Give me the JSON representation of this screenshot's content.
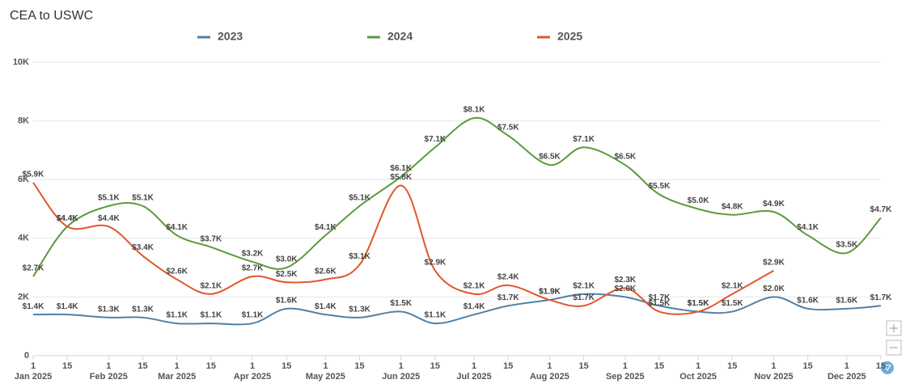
{
  "chart_data": {
    "type": "line",
    "title": "CEA to USWC",
    "x": [
      "2025-01-01",
      "2025-01-15",
      "2025-02-01",
      "2025-02-15",
      "2025-03-01",
      "2025-03-15",
      "2025-04-01",
      "2025-04-15",
      "2025-05-01",
      "2025-05-15",
      "2025-06-01",
      "2025-06-15",
      "2025-07-01",
      "2025-07-15",
      "2025-08-01",
      "2025-08-15",
      "2025-09-01",
      "2025-09-15",
      "2025-10-01",
      "2025-10-15",
      "2025-11-01",
      "2025-11-15",
      "2025-12-01",
      "2025-12-15"
    ],
    "series": [
      {
        "name": "2023",
        "color": "#4f81a8",
        "values": [
          1400,
          1400,
          1300,
          1300,
          1100,
          1100,
          1100,
          1600,
          1400,
          1300,
          1500,
          1100,
          1400,
          1700,
          1900,
          2100,
          2000,
          1700,
          1500,
          1500,
          2000,
          1600,
          1600,
          1700
        ],
        "value_labels": [
          "$1.4K",
          "$1.4K",
          "$1.3K",
          "$1.3K",
          "$1.1K",
          "$1.1K",
          "$1.1K",
          "$1.6K",
          "$1.4K",
          "$1.3K",
          "$1.5K",
          "$1.1K",
          "$1.4K",
          "$1.7K",
          "$1.9K",
          "$2.1K",
          "$2.0K",
          "$1.7K",
          "$1.5K",
          "$1.5K",
          "$2.0K",
          "$1.6K",
          "$1.6K",
          "$1.7K"
        ]
      },
      {
        "name": "2024",
        "color": "#5b9a3c",
        "values": [
          2700,
          4400,
          5100,
          5100,
          4100,
          3700,
          3200,
          3000,
          4100,
          5100,
          6100,
          7100,
          8100,
          7500,
          6500,
          7100,
          6500,
          5500,
          5000,
          4800,
          4900,
          4100,
          3500,
          4700
        ],
        "value_labels": [
          "$2.7K",
          "$4.4K",
          "$5.1K",
          "$5.1K",
          "$4.1K",
          "$3.7K",
          "$3.2K",
          "$3.0K",
          "$4.1K",
          "$5.1K",
          "$6.1K",
          "$7.1K",
          "$8.1K",
          "$7.5K",
          "$6.5K",
          "$7.1K",
          "$6.5K",
          "$5.5K",
          "$5.0K",
          "$4.8K",
          "$4.9K",
          "$4.1K",
          "$3.5K",
          "$4.7K"
        ]
      },
      {
        "name": "2025",
        "color": "#e0582a",
        "values": [
          5900,
          4400,
          4400,
          3400,
          2600,
          2100,
          2700,
          2500,
          2600,
          3100,
          5800,
          2900,
          2100,
          2400,
          1900,
          1700,
          2300,
          1500,
          1500,
          2100,
          2900,
          null,
          null,
          null
        ],
        "value_labels": [
          "$5.9K",
          "$4.4K",
          "$4.4K",
          "$3.4K",
          "$2.6K",
          "$2.1K",
          "$2.7K",
          "$2.5K",
          "$2.6K",
          "$3.1K",
          "$5.8K",
          "$2.9K",
          "$2.1K",
          "$2.4K",
          "$1.9K",
          "$1.7K",
          "$2.3K",
          "$1.5K",
          "$1.5K",
          "$2.1K",
          "$2.9K",
          null,
          null,
          null
        ]
      }
    ],
    "xlim": [
      "2025-01-01",
      "2025-12-15"
    ],
    "xticks": [
      {
        "value": "2025-01-01",
        "label": "1"
      },
      {
        "value": "2025-01-15",
        "label": "15"
      },
      {
        "value": "2025-02-01",
        "label": "1"
      },
      {
        "value": "2025-02-15",
        "label": "15"
      },
      {
        "value": "2025-03-01",
        "label": "1"
      },
      {
        "value": "2025-03-15",
        "label": "15"
      },
      {
        "value": "2025-04-01",
        "label": "1"
      },
      {
        "value": "2025-04-15",
        "label": "15"
      },
      {
        "value": "2025-05-01",
        "label": "1"
      },
      {
        "value": "2025-05-15",
        "label": "15"
      },
      {
        "value": "2025-06-01",
        "label": "1"
      },
      {
        "value": "2025-06-15",
        "label": "15"
      },
      {
        "value": "2025-07-01",
        "label": "1"
      },
      {
        "value": "2025-07-15",
        "label": "15"
      },
      {
        "value": "2025-08-01",
        "label": "1"
      },
      {
        "value": "2025-08-15",
        "label": "15"
      },
      {
        "value": "2025-09-01",
        "label": "1"
      },
      {
        "value": "2025-09-15",
        "label": "15"
      },
      {
        "value": "2025-10-01",
        "label": "1"
      },
      {
        "value": "2025-10-15",
        "label": "15"
      },
      {
        "value": "2025-11-01",
        "label": "1"
      },
      {
        "value": "2025-11-15",
        "label": "15"
      },
      {
        "value": "2025-12-01",
        "label": "1"
      },
      {
        "value": "2025-12-15",
        "label": "15"
      }
    ],
    "month_labels": [
      {
        "value": "2025-01-01",
        "label": "Jan 2025"
      },
      {
        "value": "2025-02-01",
        "label": "Feb 2025"
      },
      {
        "value": "2025-03-01",
        "label": "Mar 2025"
      },
      {
        "value": "2025-04-01",
        "label": "Apr 2025"
      },
      {
        "value": "2025-05-01",
        "label": "May 2025"
      },
      {
        "value": "2025-06-01",
        "label": "Jun 2025"
      },
      {
        "value": "2025-07-01",
        "label": "Jul 2025"
      },
      {
        "value": "2025-08-01",
        "label": "Aug 2025"
      },
      {
        "value": "2025-09-01",
        "label": "Sep 2025"
      },
      {
        "value": "2025-10-01",
        "label": "Oct 2025"
      },
      {
        "value": "2025-11-01",
        "label": "Nov 2025"
      },
      {
        "value": "2025-12-01",
        "label": "Dec 2025"
      }
    ],
    "ylim": [
      0,
      10000
    ],
    "yticks": [
      0,
      {
        "value": 2000,
        "label": "2K"
      },
      {
        "value": 4000,
        "label": "4K"
      },
      {
        "value": 6000,
        "label": "6K"
      },
      {
        "value": 8000,
        "label": "8K"
      },
      {
        "value": 10000,
        "label": "10K"
      }
    ],
    "grid": true
  }
}
